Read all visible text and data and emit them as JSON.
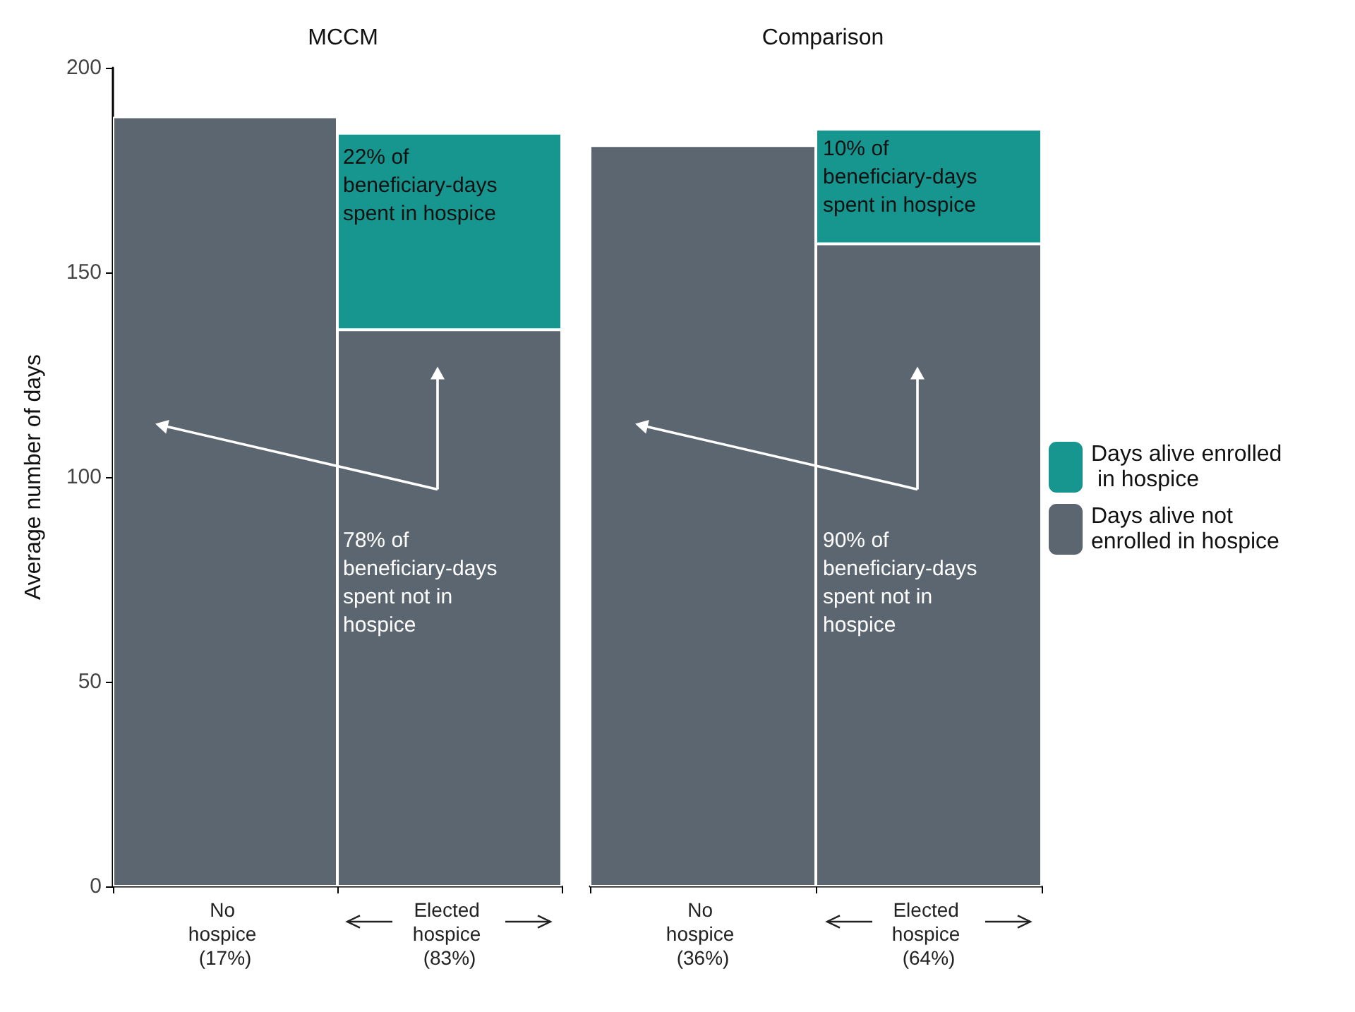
{
  "chart_data": [
    {
      "type": "bar",
      "stacked": true,
      "title": "MCCM",
      "ylabel": "Average number of days",
      "categories": [
        "No hospice (17%)",
        "Elected hospice (83%)"
      ],
      "series": [
        {
          "color": "#5b6670",
          "values": [
            188,
            136
          ]
        },
        {
          "color": "#17958f",
          "values": [
            null,
            48
          ]
        }
      ],
      "ylim": [
        0,
        200
      ],
      "yticks": [
        0,
        50,
        100,
        150,
        200
      ],
      "grid": false,
      "legend": false,
      "annotations": [
        "22% of beneficiary-days spent in hospice",
        "78% of beneficiary-days spent not in hospice"
      ]
    },
    {
      "type": "bar",
      "stacked": true,
      "title": "Comparison",
      "categories": [
        "No hospice (36%)",
        "Elected hospice (64%)"
      ],
      "series": [
        {
          "name": "Days alive not enrolled in hospice",
          "color": "#5b6670",
          "values": [
            181,
            157
          ]
        },
        {
          "name": "Days alive enrolled in hospice",
          "color": "#17958f",
          "values": [
            null,
            28
          ]
        }
      ],
      "ylim": [
        0,
        200
      ],
      "yticks": [
        0,
        50,
        100,
        150,
        200
      ],
      "grid": false,
      "legend": "right",
      "tick_labels": "x",
      "annotations": [
        "10% of beneficiary-days spent in hospice",
        "90% of beneficiary-days spent not in hospice"
      ]
    }
  ]
}
